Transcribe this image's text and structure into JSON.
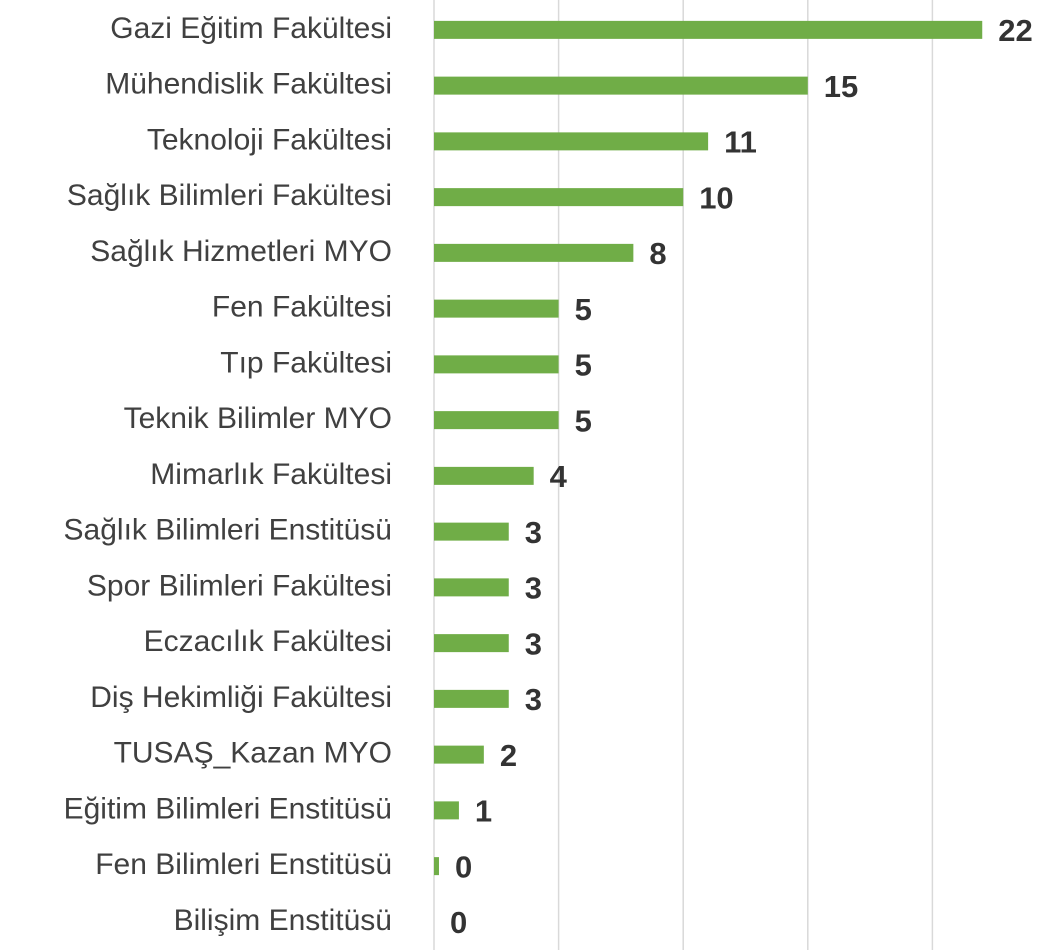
{
  "chart_data": {
    "type": "barh",
    "categories": [
      "Gazi Eğitim Fakültesi",
      "Mühendislik Fakültesi",
      "Teknoloji Fakültesi",
      "Sağlık Bilimleri Fakültesi",
      "Sağlık Hizmetleri MYO",
      "Fen Fakültesi",
      "Tıp Fakültesi",
      "Teknik Bilimler MYO",
      "Mimarlık Fakültesi",
      "Sağlık Bilimleri Enstitüsü",
      "Spor Bilimleri Fakültesi",
      "Eczacılık Fakültesi",
      "Diş Hekimliği Fakültesi",
      "TUSAŞ_Kazan MYO",
      "Eğitim Bilimleri Enstitüsü",
      "Fen Bilimleri Enstitüsü",
      "Bilişim Enstitüsü"
    ],
    "values": [
      22,
      15,
      11,
      10,
      8,
      5,
      5,
      5,
      4,
      3,
      3,
      3,
      3,
      2,
      1,
      0.2,
      0
    ],
    "value_labels": [
      "22",
      "15",
      "11",
      "10",
      "8",
      "5",
      "5",
      "5",
      "4",
      "3",
      "3",
      "3",
      "3",
      "2",
      "1",
      "0",
      "0"
    ],
    "color": "#70ad47",
    "xlim": [
      0,
      25
    ],
    "xticks": [
      0,
      5,
      10,
      15,
      20
    ],
    "grid": true
  }
}
